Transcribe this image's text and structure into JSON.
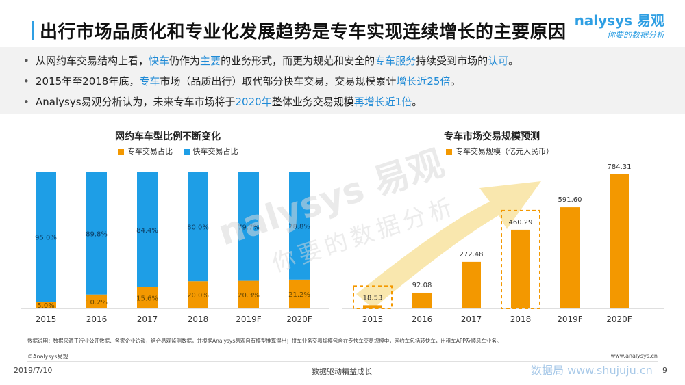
{
  "header": {
    "title": "出行市场品质化和专业化发展趋势是专车实现连续增长的主要原因",
    "brand": "nalysys 易观",
    "tagline": "你要的数据分析"
  },
  "bullets": [
    {
      "segments": [
        {
          "text": "从网约车交易结构上看，",
          "hl": false
        },
        {
          "text": "快车",
          "hl": true
        },
        {
          "text": "仍作为",
          "hl": false
        },
        {
          "text": "主要",
          "hl": true
        },
        {
          "text": "的业务形式，而更为规范和安全的",
          "hl": false
        },
        {
          "text": "专车服务",
          "hl": true
        },
        {
          "text": "持续受到市场的",
          "hl": false
        },
        {
          "text": "认可",
          "hl": true
        },
        {
          "text": "。",
          "hl": false
        }
      ]
    },
    {
      "segments": [
        {
          "text": "2015年至2018年底，",
          "hl": false
        },
        {
          "text": "专车",
          "hl": true
        },
        {
          "text": "市场（品质出行）取代部分快车交易，交易规模累计",
          "hl": false
        },
        {
          "text": "增长近25倍",
          "hl": true
        },
        {
          "text": "。",
          "hl": false
        }
      ]
    },
    {
      "segments": [
        {
          "text": "Analysys易观分析认为，未来专车市场将于",
          "hl": false
        },
        {
          "text": "2020年",
          "hl": true
        },
        {
          "text": "整体业务交易规模",
          "hl": false
        },
        {
          "text": "再增长近1倍",
          "hl": true
        },
        {
          "text": "。",
          "hl": false
        }
      ]
    }
  ],
  "watermark": {
    "line1": "nalysys 易观",
    "line2": "你要的数据分析"
  },
  "colors": {
    "orange": "#f39800",
    "blue": "#1e9ee6",
    "highlight": "#1f8ad6",
    "arrow": "#f8e3a0"
  },
  "chart_data": [
    {
      "type": "bar",
      "stacked": true,
      "title": "网约车车型比例不断变化",
      "categories": [
        "2015",
        "2016",
        "2017",
        "2018",
        "2019F",
        "2020F"
      ],
      "series": [
        {
          "name": "专车交易占比",
          "values": [
            5.0,
            10.2,
            15.6,
            20.0,
            20.3,
            21.2
          ],
          "labels": [
            "5.0%",
            "10.2%",
            "15.6%",
            "20.0%",
            "20.3%",
            "21.2%"
          ]
        },
        {
          "name": "快车交易占比",
          "values": [
            95.0,
            89.8,
            84.4,
            80.0,
            79.7,
            78.8
          ],
          "labels": [
            "95.0%",
            "89.8%",
            "84.4%",
            "80.0%",
            "79.7%",
            "78.8%"
          ]
        }
      ],
      "ylim": [
        0,
        100
      ],
      "legend": "top"
    },
    {
      "type": "bar",
      "title": "专车市场交易规模预测",
      "categories": [
        "2015",
        "2016",
        "2017",
        "2018",
        "2019F",
        "2020F"
      ],
      "series": [
        {
          "name": "专车交易规模（亿元人民币）",
          "values": [
            18.53,
            92.08,
            272.48,
            460.29,
            591.6,
            784.31
          ],
          "labels": [
            "18.53",
            "92.08",
            "272.48",
            "460.29",
            "591.60",
            "784.31"
          ]
        }
      ],
      "highlighted": [
        "2015",
        "2018"
      ],
      "ylim": [
        0,
        800
      ],
      "legend": "top"
    }
  ],
  "footer": {
    "note": "数据说明：数据来源于行业公开数据、各家企业访谈，结合易观监测数据，并根据Analysys易观自有模型推算得出；拼车业务交易规模包含在专快车交易规模中，网约车包括转快车，出租车APP及顺风车业务。",
    "copyright": "©Analysys易观",
    "website": "www.analysys.cn",
    "date": "2019/7/10",
    "slogan": "数据驱动精益成长",
    "shuju": "数据局  www.shujuju.cn",
    "page": "9"
  }
}
